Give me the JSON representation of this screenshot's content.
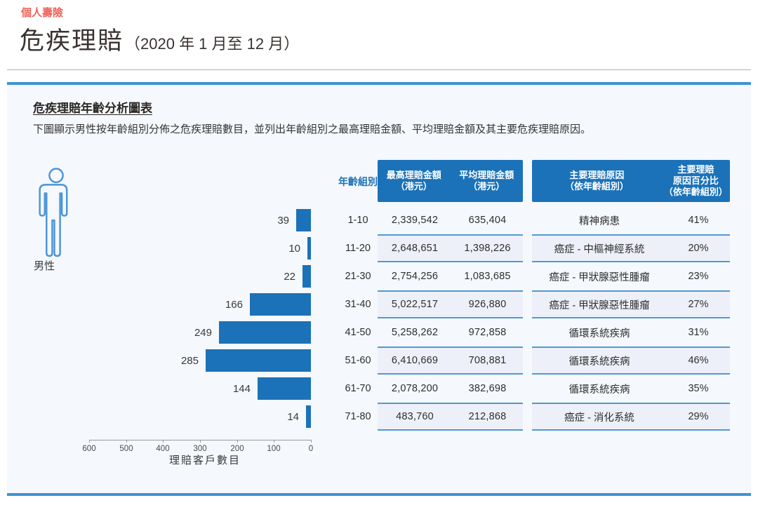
{
  "page": {
    "eyebrow": "個人壽險",
    "title": "危疾理賠",
    "title_period": "（2020 年 1 月至 12 月）"
  },
  "panel": {
    "heading": "危疾理賠年齡分析圖表",
    "description": "下圖顯示男性按年齡組別分佈之危疾理賠數目，並列出年齡組別之最高理賠金額、平均理賠金額及其主要危疾理賠原因。",
    "gender_label": "男性",
    "gender_icon": "male-figure-icon"
  },
  "table": {
    "age_header": "年齡組別",
    "max_header": "最高理賠金額\n（港元）",
    "avg_header": "平均理賠金額\n（港元）",
    "reason_header": "主要理賠原因\n（依年齡組別）",
    "pct_header": "主要理賠\n原因百分比\n（依年齡組別）",
    "rows": [
      {
        "age": "1-10",
        "max": "2,339,542",
        "avg": "635,404",
        "reason": "精神病患",
        "pct": "41%",
        "shaded": false
      },
      {
        "age": "11-20",
        "max": "2,648,651",
        "avg": "1,398,226",
        "reason": "癌症 - 中樞神經系統",
        "pct": "20%",
        "shaded": true
      },
      {
        "age": "21-30",
        "max": "2,754,256",
        "avg": "1,083,685",
        "reason": "癌症 - 甲狀腺惡性腫瘤",
        "pct": "23%",
        "shaded": false
      },
      {
        "age": "31-40",
        "max": "5,022,517",
        "avg": "926,880",
        "reason": "癌症 - 甲狀腺惡性腫瘤",
        "pct": "27%",
        "shaded": true
      },
      {
        "age": "41-50",
        "max": "5,258,262",
        "avg": "972,858",
        "reason": "循環系統疾病",
        "pct": "31%",
        "shaded": false
      },
      {
        "age": "51-60",
        "max": "6,410,669",
        "avg": "708,881",
        "reason": "循環系統疾病",
        "pct": "46%",
        "shaded": true
      },
      {
        "age": "61-70",
        "max": "2,078,200",
        "avg": "382,698",
        "reason": "循環系統疾病",
        "pct": "35%",
        "shaded": false
      },
      {
        "age": "71-80",
        "max": "483,760",
        "avg": "212,868",
        "reason": "癌症 - 消化系統",
        "pct": "29%",
        "shaded": true
      }
    ]
  },
  "chart_data": {
    "type": "bar",
    "orientation": "horizontal-right-anchored",
    "title": "危疾理賠年齡分析圖表",
    "categories": [
      "1-10",
      "11-20",
      "21-30",
      "31-40",
      "41-50",
      "51-60",
      "61-70",
      "71-80"
    ],
    "values": [
      39,
      10,
      22,
      166,
      249,
      285,
      144,
      14
    ],
    "xlabel": "理賠客戶數目",
    "ylabel": "年齡組別",
    "x_ticks": [
      600,
      500,
      400,
      300,
      200,
      100,
      0
    ],
    "xlim": [
      0,
      600
    ],
    "grid": false,
    "legend": "none",
    "bar_color": "#1b72b8"
  },
  "colors": {
    "primary_blue": "#1b72b8",
    "divider_blue": "#3e93d0",
    "panel_bg": "#f5f8fc",
    "row_shade": "#edf0f8",
    "row_shade_border": "#4f9ad2",
    "eyebrow_red": "#ef5f55",
    "title_text": "#3a3230"
  }
}
